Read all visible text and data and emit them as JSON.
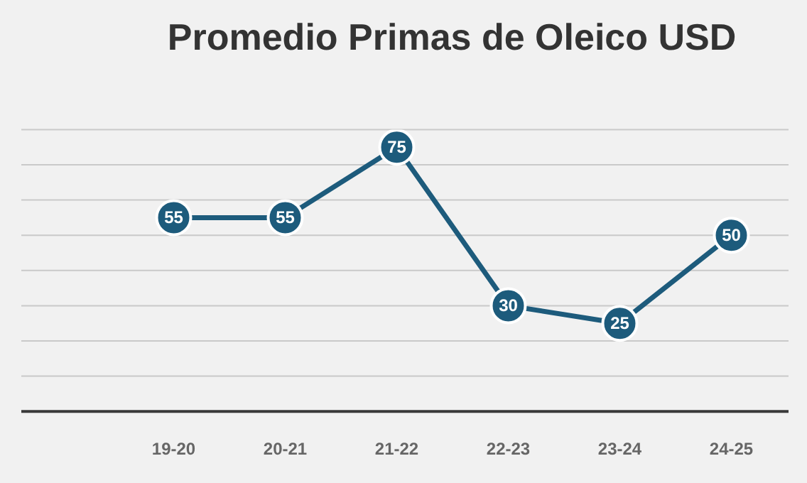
{
  "chart_data": {
    "type": "line",
    "title": "Promedio Primas de Oleico USD",
    "categories": [
      "19-20",
      "20-21",
      "21-22",
      "22-23",
      "23-24",
      "24-25"
    ],
    "series": [
      {
        "color": "#1d5b7c",
        "values": [
          55,
          55,
          75,
          30,
          25,
          50
        ]
      }
    ],
    "ylim": [
      0,
      80
    ],
    "yticks": [
      {
        "value": 0,
        "label": null
      },
      {
        "value": 10,
        "label": null
      },
      {
        "value": 20,
        "label": null
      },
      {
        "value": 30,
        "label": null
      },
      {
        "value": 40,
        "label": null
      },
      {
        "value": 50,
        "label": null
      },
      {
        "value": 60,
        "label": null
      },
      {
        "value": 70,
        "label": null
      },
      {
        "value": 80,
        "label": null
      }
    ],
    "tick_labels": "x",
    "grid": "y",
    "legend": false,
    "marker": "circle",
    "line_style": "solid",
    "data_labels": true
  }
}
